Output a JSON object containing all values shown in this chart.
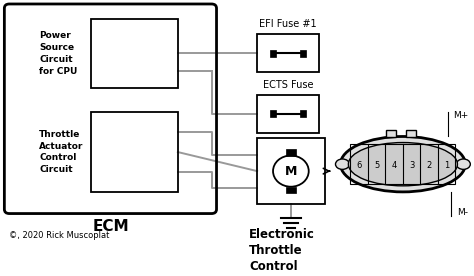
{
  "bg_color": "#ffffff",
  "line_color": "#999999",
  "box_color": "#000000",
  "dark_color": "#333333",
  "copyright": "©, 2020 Rick Muscoplat",
  "power_label": "Power\nSource\nCircuit\nfor CPU",
  "throttle_label": "Throttle\nActuator\nControl\nCircuit",
  "ecm_label": "ECM",
  "efi_label": "EFI Fuse #1",
  "ects_label": "ECTS Fuse",
  "etc_label": "Electronic\nThrottle\nControl",
  "connector_numbers": [
    "6",
    "5",
    "4",
    "3",
    "2",
    "1"
  ],
  "mplus_label": "M+",
  "mminus_label": "M-"
}
